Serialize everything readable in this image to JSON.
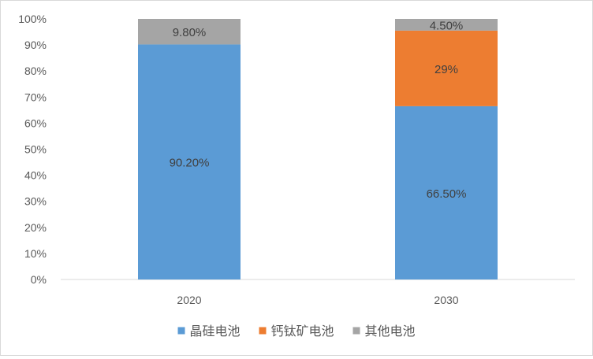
{
  "chart_data": {
    "type": "bar",
    "stacked": true,
    "categories": [
      "2020",
      "2030"
    ],
    "series": [
      {
        "name": "晶硅电池",
        "color": "#5b9bd5",
        "values": [
          90.2,
          66.5
        ],
        "labels": [
          "90.20%",
          "66.50%"
        ]
      },
      {
        "name": "钙钛矿电池",
        "color": "#ed7d31",
        "values": [
          0,
          29
        ],
        "labels": [
          "",
          "29%"
        ]
      },
      {
        "name": "其他电池",
        "color": "#a5a5a5",
        "values": [
          9.8,
          4.5
        ],
        "labels": [
          "9.80%",
          "4.50%"
        ]
      }
    ],
    "ylim": [
      0,
      100
    ],
    "y_ticks": [
      "0%",
      "10%",
      "20%",
      "30%",
      "40%",
      "50%",
      "60%",
      "70%",
      "80%",
      "90%",
      "100%"
    ],
    "grid": false,
    "legend_position": "bottom",
    "title": "",
    "xlabel": "",
    "ylabel": ""
  }
}
